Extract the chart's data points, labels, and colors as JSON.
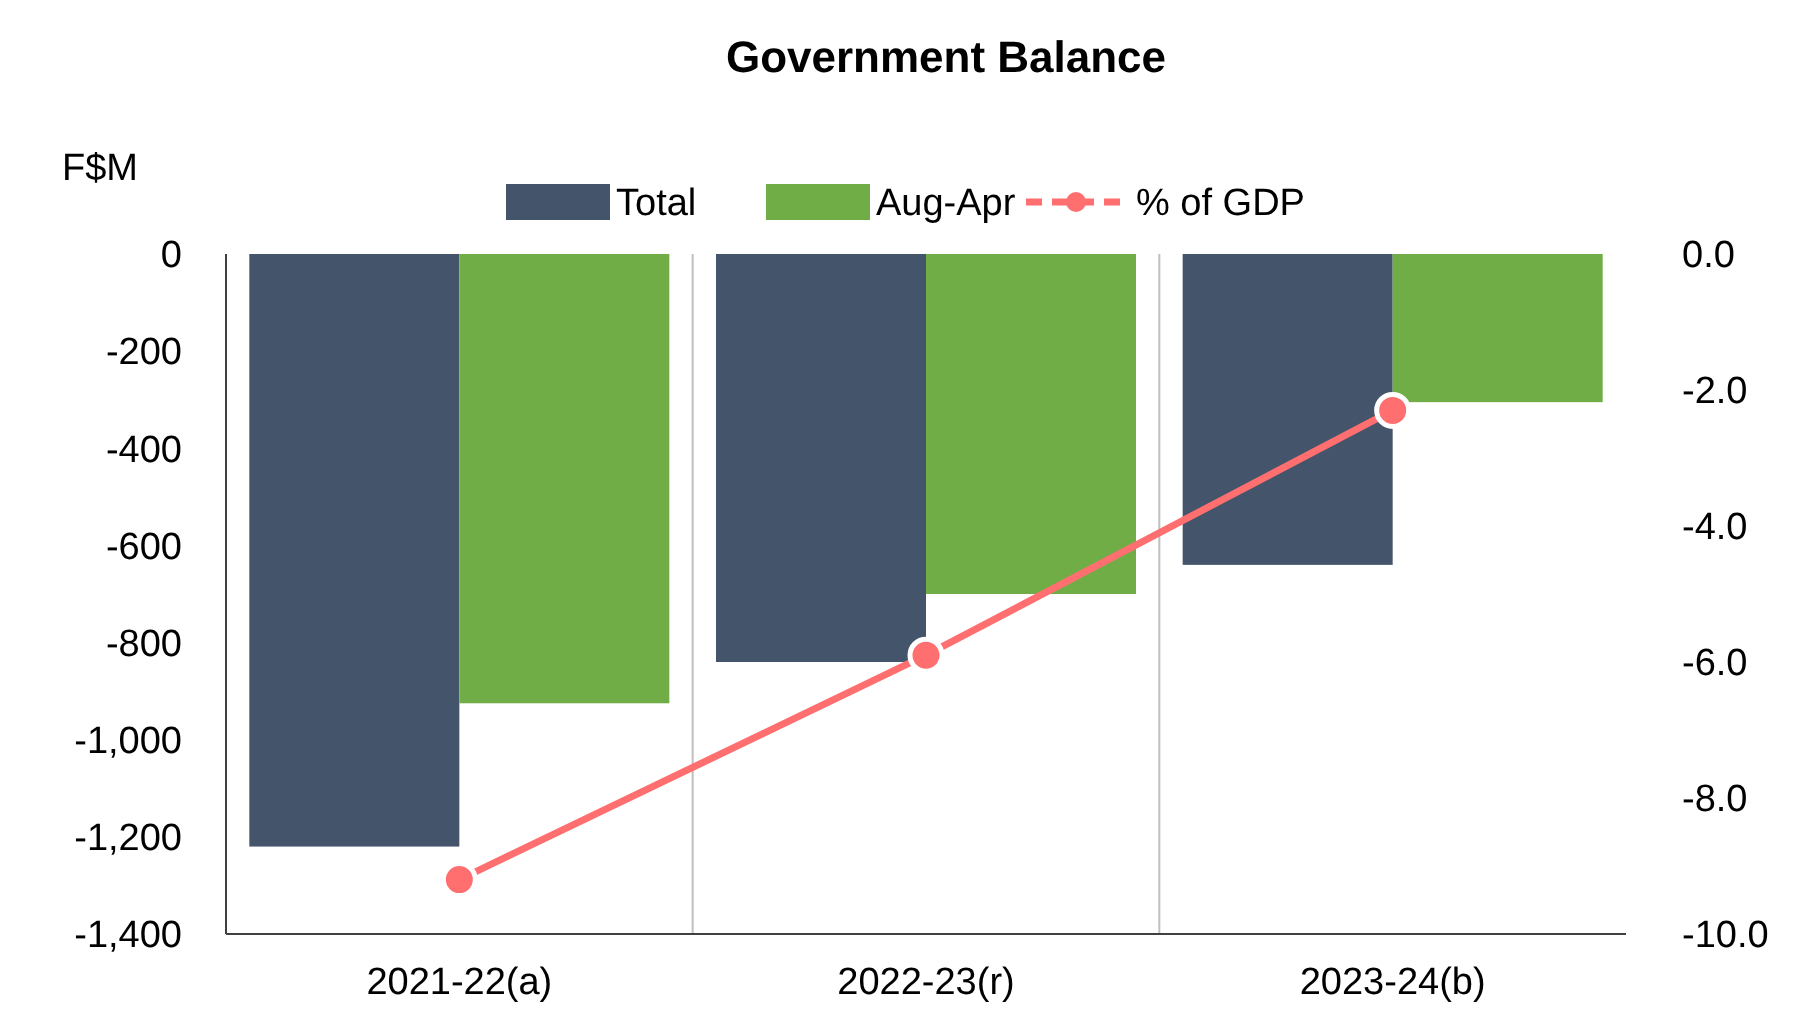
{
  "chart_data": {
    "type": "bar",
    "title": "Government Balance",
    "ylabel": "F$M",
    "categories": [
      "2021-22(a)",
      "2022-23(r)",
      "2023-24(b)"
    ],
    "series": [
      {
        "name": "Total",
        "color": "#44546a",
        "values": [
          -1220,
          -840,
          -640
        ]
      },
      {
        "name": "Aug-Apr",
        "color": "#70ad47",
        "values": [
          -925,
          -700,
          -305
        ]
      },
      {
        "name": "% of GDP",
        "type": "line",
        "axis": "y2",
        "color": "#ff6f6f",
        "values": [
          -9.2,
          -5.9,
          -2.3
        ],
        "marker": "circle",
        "line_style": "solid"
      }
    ],
    "ylim": [
      -1400,
      0
    ],
    "yticks": [
      0,
      -200,
      -400,
      -600,
      -800,
      {
        "value": -1000,
        "label": "-1,000"
      },
      {
        "value": -1200,
        "label": "-1,200"
      },
      {
        "value": -1400,
        "label": "-1,400"
      }
    ],
    "y2lim": [
      -10,
      0
    ],
    "y2ticks": [
      {
        "value": 0,
        "label": "0.0"
      },
      {
        "value": -2,
        "label": "-2.0"
      },
      {
        "value": -4,
        "label": "-4.0"
      },
      {
        "value": -6,
        "label": "-6.0"
      },
      {
        "value": -8,
        "label": "-8.0"
      },
      {
        "value": -10,
        "label": "-10.0"
      }
    ],
    "grid": "x",
    "legend": "top"
  }
}
